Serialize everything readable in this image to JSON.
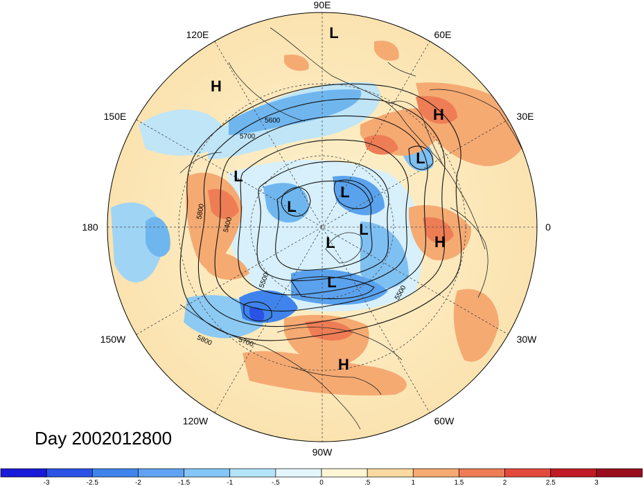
{
  "title": "Day 2002012800",
  "longitude_labels": {
    "n": "90E",
    "ne": "60E",
    "e_upper": "30E",
    "e": "0",
    "e_lower": "30W",
    "se": "60W",
    "s": "90W",
    "sw": "120W",
    "w_lower": "150W",
    "w": "180",
    "w_upper": "150E",
    "nw": "120E"
  },
  "pressure_centers": [
    {
      "label": "L",
      "id": "l-top"
    },
    {
      "label": "H",
      "id": "h-nw"
    },
    {
      "label": "H",
      "id": "h-ne"
    },
    {
      "label": "L",
      "id": "l-europe"
    },
    {
      "label": "L",
      "id": "l-west"
    },
    {
      "label": "L",
      "id": "l-center-left"
    },
    {
      "label": "L",
      "id": "l-center-top"
    },
    {
      "label": "L",
      "id": "l-center-right"
    },
    {
      "label": "L",
      "id": "l-center"
    },
    {
      "label": "L",
      "id": "l-canada"
    },
    {
      "label": "H",
      "id": "h-atlantic"
    },
    {
      "label": "H",
      "id": "h-gulf"
    }
  ],
  "contour_labels": [
    "5600",
    "5700",
    "5800",
    "5400",
    "5500",
    "5500",
    "5700",
    "5800"
  ],
  "colorbar": {
    "labels": [
      "-3",
      "-2.5",
      "-2",
      "-1.5",
      "-1",
      "-.5",
      "0",
      ".5",
      "1",
      "1.5",
      "2",
      "2.5",
      "3"
    ],
    "colors": [
      "#1a1ad9",
      "#2a53e6",
      "#3f84ec",
      "#5fa3f2",
      "#84c6f7",
      "#b4e4fa",
      "#e4f6fc",
      "#fef6d4",
      "#fbd9a0",
      "#f5aa72",
      "#ee7d55",
      "#e34a3c",
      "#c01b24",
      "#9a0d1c"
    ]
  }
}
